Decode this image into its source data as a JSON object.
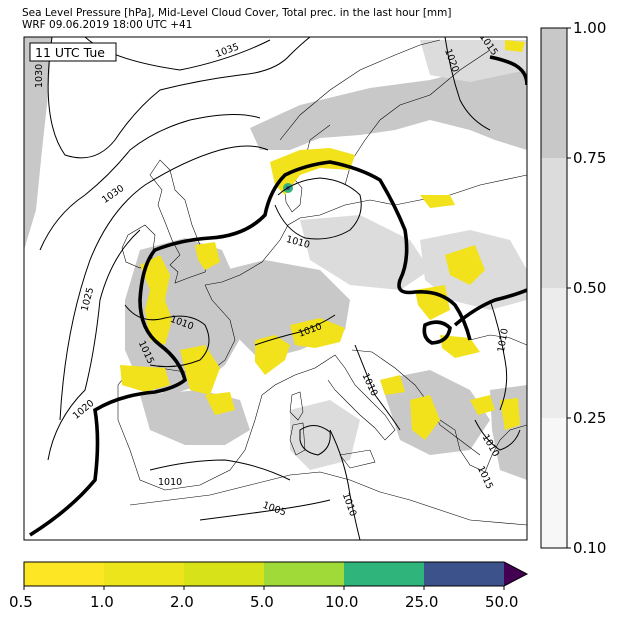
{
  "header": {
    "line1": "Sea Level Pressure [hPa], Mid-Level Cloud Cover, Total prec. in the last hour [mm]",
    "line2": "WRF 09.06.2019 18:00 UTC +41"
  },
  "map": {
    "time_label": "11 UTC Tue",
    "isobar_labels": [
      "1035",
      "1030",
      "1030",
      "1025",
      "1020",
      "1015",
      "1010",
      "1010",
      "1010",
      "1010",
      "1010",
      "1005",
      "1010",
      "1010",
      "1020",
      "1015",
      "1010",
      "1015"
    ]
  },
  "cloud_colorbar": {
    "ticks": [
      "1.00",
      "0.75",
      "0.50",
      "0.25",
      "0.10"
    ],
    "colors": [
      "#c8c8c8",
      "#dcdcdc",
      "#ececec",
      "#f7f7f7"
    ]
  },
  "precip_colorbar": {
    "ticks": [
      "0.5",
      "1.0",
      "2.0",
      "5.0",
      "10.0",
      "25.0",
      "50.0"
    ],
    "colors": [
      "#fde725",
      "#ece51b",
      "#d7e219",
      "#a0da39",
      "#2fb47c",
      "#3b528b",
      "#440154"
    ]
  },
  "colors": {
    "precip_light": "#f2e21c",
    "precip_strong": "#d7e219",
    "cloud_dark": "#c8c8c8",
    "cloud_mid": "#dcdcdc",
    "isobar": "#000000"
  }
}
